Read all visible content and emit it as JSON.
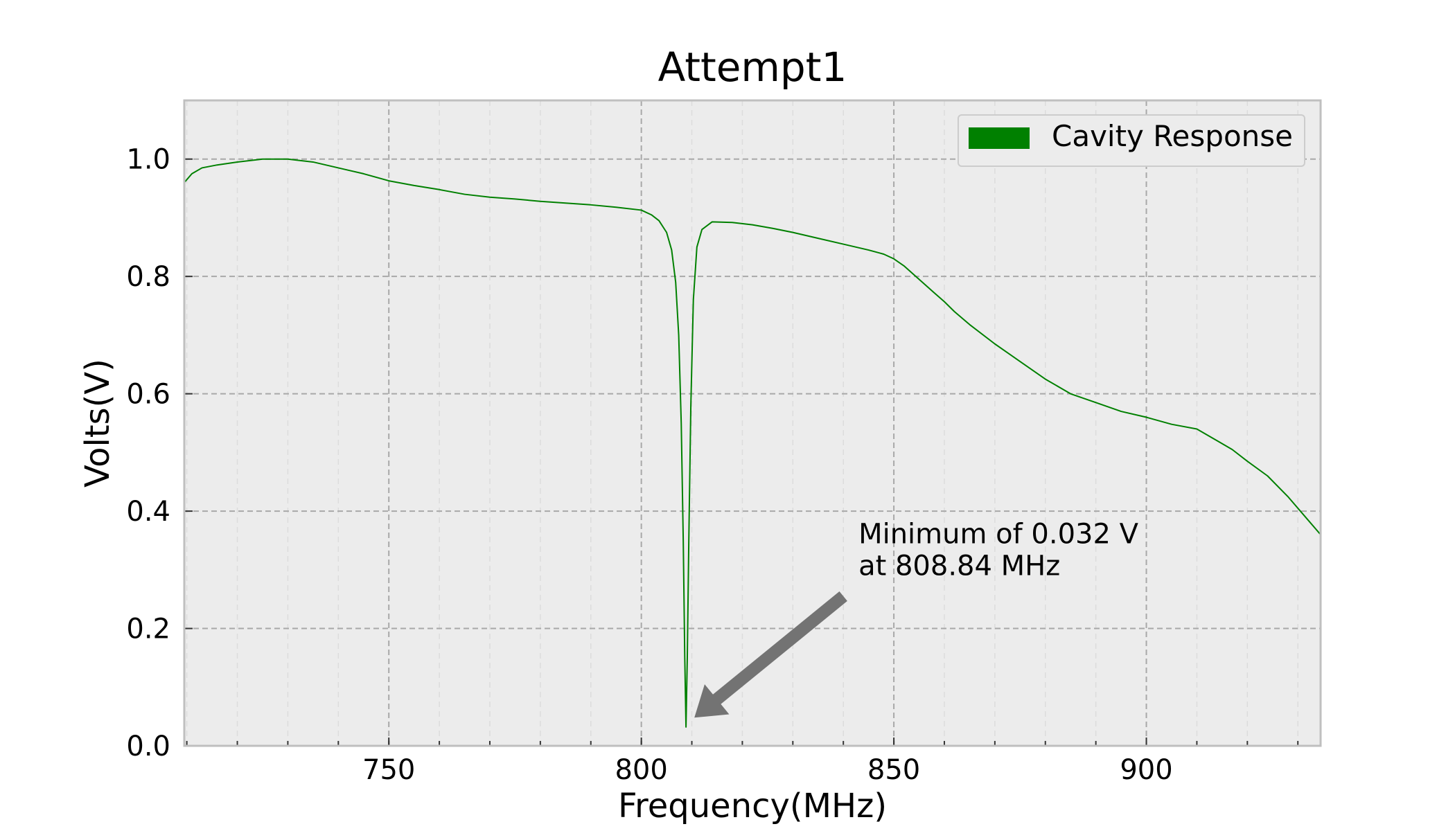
{
  "chart_data": {
    "type": "line",
    "title": "Attempt1",
    "xlabel": "Frequency(MHz)",
    "ylabel": "Volts(V)",
    "xlim": [
      709.5,
      934.5
    ],
    "ylim": [
      0.0,
      1.1
    ],
    "x_ticks": [
      750,
      800,
      850,
      900
    ],
    "x_tick_labels": [
      "750",
      "800",
      "850",
      "900"
    ],
    "x_minor_step": 10,
    "y_ticks": [
      0.0,
      0.2,
      0.4,
      0.6,
      0.8,
      1.0
    ],
    "y_tick_labels": [
      "0.0",
      "0.2",
      "0.4",
      "0.6",
      "0.8",
      "1.0"
    ],
    "grid": true,
    "legend": {
      "position": "top-right",
      "entries": [
        "Cavity Response"
      ]
    },
    "annotation": {
      "lines": [
        "Minimum of 0.032 V",
        "at 808.84 MHz"
      ],
      "text_x": 843,
      "text_y": 0.345,
      "arrow_tail": [
        840,
        0.255
      ],
      "arrow_head": [
        810.5,
        0.048
      ]
    },
    "series": [
      {
        "name": "Cavity Response",
        "color": "#008000",
        "x": [
          709.5,
          711,
          713,
          716,
          720,
          725,
          730,
          735,
          740,
          745,
          750,
          755,
          760,
          765,
          770,
          775,
          780,
          785,
          790,
          795,
          800,
          802,
          803.5,
          805,
          806,
          806.8,
          807.4,
          807.9,
          808.3,
          808.6,
          808.84,
          809.1,
          809.4,
          809.8,
          810.3,
          811,
          812,
          814,
          818,
          822,
          826,
          830,
          835,
          840,
          845,
          848,
          850,
          852,
          855,
          858,
          860,
          862,
          865,
          870,
          875,
          880,
          885,
          890,
          895,
          900,
          905,
          910,
          914,
          917,
          920,
          924,
          928,
          932,
          934.5
        ],
        "y": [
          0.96,
          0.975,
          0.985,
          0.99,
          0.995,
          1.0,
          1.0,
          0.995,
          0.985,
          0.975,
          0.963,
          0.955,
          0.948,
          0.94,
          0.935,
          0.932,
          0.928,
          0.925,
          0.922,
          0.918,
          0.913,
          0.905,
          0.895,
          0.875,
          0.845,
          0.79,
          0.7,
          0.55,
          0.35,
          0.15,
          0.032,
          0.15,
          0.35,
          0.58,
          0.76,
          0.85,
          0.88,
          0.893,
          0.892,
          0.888,
          0.882,
          0.875,
          0.865,
          0.855,
          0.845,
          0.838,
          0.83,
          0.818,
          0.795,
          0.772,
          0.757,
          0.74,
          0.718,
          0.685,
          0.655,
          0.625,
          0.6,
          0.585,
          0.57,
          0.56,
          0.548,
          0.54,
          0.52,
          0.505,
          0.485,
          0.46,
          0.425,
          0.385,
          0.36
        ]
      }
    ]
  }
}
